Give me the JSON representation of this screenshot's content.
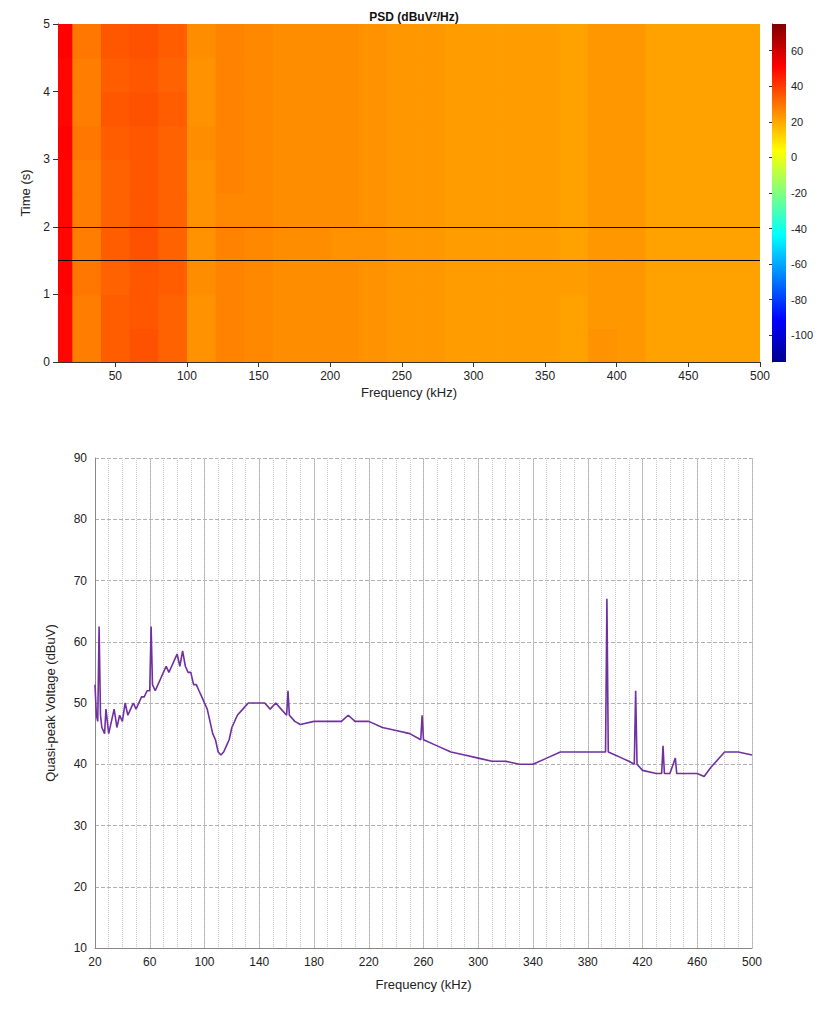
{
  "chart_data": [
    {
      "type": "heatmap",
      "title": "PSD (dBuV²/Hz)",
      "x_label": "Frequency (kHz)",
      "y_label": "Time (s)",
      "xlim": [
        10,
        500
      ],
      "xticks": [
        50,
        100,
        150,
        200,
        250,
        300,
        350,
        400,
        450,
        500
      ],
      "ylim": [
        0,
        5
      ],
      "yticks": [
        0,
        1,
        2,
        3,
        4,
        5
      ],
      "grid": false,
      "freq_bins": [
        10,
        20,
        40,
        60,
        80,
        100,
        120,
        140,
        160,
        180,
        200,
        220,
        240,
        260,
        280,
        300,
        320,
        340,
        360,
        380,
        400,
        420,
        440,
        460,
        480,
        500
      ],
      "time_bins": [
        0,
        0.5,
        1,
        1.5,
        2,
        2.5,
        3,
        3.5,
        4,
        4.5,
        5
      ],
      "psd": [
        [
          50,
          28,
          34,
          36,
          33,
          24,
          27,
          26,
          25,
          25,
          25,
          24,
          23,
          23,
          22,
          22,
          22,
          22,
          21,
          24,
          23,
          21,
          21,
          21,
          21
        ],
        [
          50,
          28,
          34,
          35,
          33,
          24,
          27,
          26,
          25,
          25,
          25,
          24,
          23,
          23,
          22,
          22,
          22,
          22,
          21,
          23,
          23,
          21,
          21,
          21,
          21
        ],
        [
          51,
          29,
          33,
          35,
          34,
          25,
          27,
          26,
          25,
          25,
          25,
          24,
          23,
          23,
          22,
          22,
          22,
          22,
          22,
          23,
          23,
          21,
          21,
          21,
          21
        ],
        [
          50,
          28,
          34,
          36,
          33,
          24,
          27,
          26,
          25,
          25,
          24,
          24,
          23,
          23,
          22,
          22,
          22,
          22,
          21,
          23,
          23,
          21,
          21,
          21,
          21
        ],
        [
          50,
          28,
          33,
          35,
          33,
          24,
          26,
          26,
          25,
          25,
          25,
          24,
          23,
          23,
          22,
          22,
          22,
          22,
          21,
          23,
          23,
          21,
          21,
          21,
          21
        ],
        [
          50,
          28,
          33,
          35,
          33,
          24,
          27,
          26,
          25,
          25,
          25,
          24,
          23,
          23,
          22,
          22,
          22,
          22,
          21,
          23,
          23,
          21,
          21,
          21,
          21
        ],
        [
          51,
          29,
          34,
          35,
          33,
          25,
          27,
          26,
          25,
          25,
          25,
          24,
          23,
          23,
          22,
          22,
          22,
          22,
          21,
          23,
          23,
          21,
          21,
          21,
          21
        ],
        [
          50,
          28,
          35,
          36,
          34,
          24,
          27,
          26,
          25,
          25,
          25,
          24,
          23,
          23,
          22,
          22,
          22,
          22,
          21,
          23,
          23,
          21,
          21,
          21,
          21
        ],
        [
          50,
          28,
          34,
          35,
          33,
          24,
          27,
          26,
          25,
          25,
          25,
          24,
          23,
          23,
          22,
          22,
          22,
          22,
          21,
          23,
          23,
          21,
          21,
          21,
          21
        ],
        [
          51,
          29,
          35,
          36,
          34,
          25,
          27,
          26,
          25,
          25,
          25,
          24,
          23,
          23,
          22,
          22,
          22,
          22,
          21,
          23,
          23,
          21,
          21,
          21,
          21
        ]
      ],
      "colorbar": {
        "range": [
          -115,
          75
        ],
        "ticks": [
          -100,
          -80,
          -60,
          -40,
          -20,
          0,
          20,
          40,
          60
        ]
      },
      "hlines": [
        1.5,
        2.0
      ]
    },
    {
      "type": "line",
      "x_label": "Frequency (kHz)",
      "y_label": "Quasi-peak Voltage (dBuV)",
      "xlim": [
        20,
        500
      ],
      "xticks": [
        20,
        60,
        100,
        140,
        180,
        220,
        260,
        300,
        340,
        380,
        420,
        460,
        500
      ],
      "ylim": [
        10,
        90
      ],
      "yticks": [
        10,
        20,
        30,
        40,
        50,
        60,
        70,
        80,
        90
      ],
      "grid": true,
      "color": "#7030a0",
      "line_style": "solid",
      "x": [
        20,
        21,
        22,
        23,
        24,
        25,
        27,
        28,
        30,
        32,
        34,
        36,
        38,
        40,
        42,
        44,
        46,
        48,
        50,
        52,
        54,
        56,
        58,
        60,
        61,
        62,
        64,
        66,
        68,
        70,
        72,
        74,
        76,
        78,
        80,
        82,
        84,
        86,
        88,
        90,
        92,
        94,
        96,
        98,
        100,
        102,
        104,
        106,
        108,
        110,
        112,
        114,
        116,
        118,
        120,
        124,
        128,
        132,
        136,
        140,
        144,
        148,
        152,
        156,
        160,
        161,
        162,
        166,
        170,
        180,
        190,
        200,
        205,
        210,
        220,
        230,
        240,
        250,
        258,
        259,
        260,
        270,
        280,
        290,
        300,
        310,
        320,
        330,
        340,
        350,
        360,
        370,
        380,
        390,
        393,
        394,
        395,
        400,
        405,
        410,
        414,
        415,
        416,
        420,
        430,
        434,
        435,
        436,
        440,
        444,
        445,
        450,
        460,
        465,
        470,
        480,
        490,
        500
      ],
      "values": [
        53,
        48,
        47,
        62.5,
        48,
        46,
        45,
        49,
        45,
        47,
        49,
        46,
        48,
        47,
        50,
        48,
        49,
        50,
        49,
        50,
        51,
        51,
        52,
        52,
        62.5,
        53,
        52,
        53,
        54,
        55,
        56,
        55,
        56,
        57,
        58,
        56,
        58.5,
        56,
        55,
        55,
        53,
        53,
        52,
        51,
        50,
        49,
        47,
        45,
        44,
        42,
        41.5,
        42,
        43,
        44,
        46,
        48,
        49,
        50,
        50,
        50,
        50,
        49,
        50,
        49,
        48,
        52,
        48,
        47,
        46.5,
        47,
        47,
        47,
        48,
        47,
        47,
        46,
        45.5,
        45,
        44,
        48,
        44,
        43,
        42,
        41.5,
        41,
        40.5,
        40.5,
        40,
        40,
        41,
        42,
        42,
        42,
        42,
        42,
        67,
        42,
        41.5,
        41,
        40.5,
        40,
        52,
        40,
        39,
        38.5,
        38.5,
        43,
        38.5,
        38.5,
        41,
        38.5,
        38.5,
        38.5,
        38,
        39.5,
        42,
        42,
        41.5
      ]
    }
  ]
}
